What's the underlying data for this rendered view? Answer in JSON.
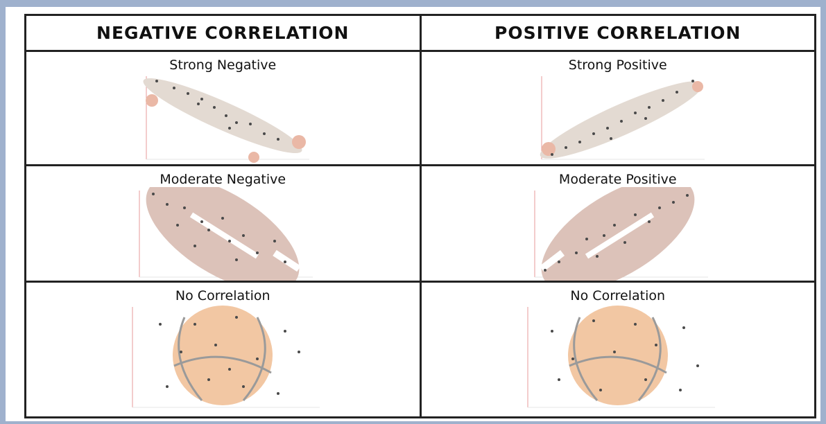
{
  "table": {
    "headers": [
      "NEGATIVE CORRELATION",
      "POSITIVE CORRELATION"
    ],
    "rows": [
      [
        "Strong Negative",
        "Strong Positive"
      ],
      [
        "Moderate Negative",
        "Moderate Positive"
      ],
      [
        "No Correlation",
        "No Correlation"
      ]
    ]
  }
}
